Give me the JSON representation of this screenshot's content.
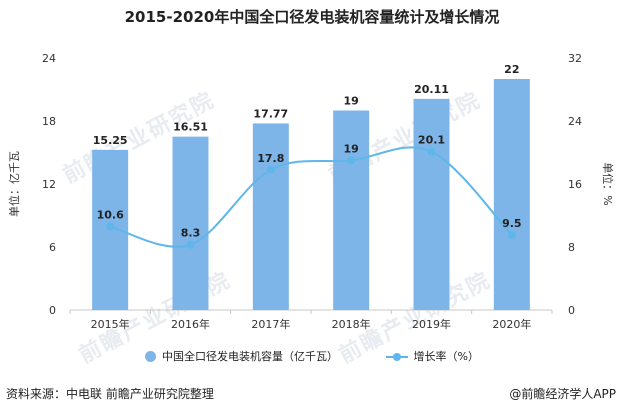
{
  "title": "2015-2020年中国全口径发电装机容量统计及增长情况",
  "source": "资料来源：中电联 前瞻产业研究院整理",
  "brand": "@前瞻经济学人APP",
  "watermark": "前瞻产业研究院",
  "colors": {
    "bar": "#7eb5e8",
    "line": "#5fb6ea",
    "axis": "#c8c8c8",
    "text": "#333333"
  },
  "chart_data": {
    "type": "bar+line",
    "categories": [
      "2015年",
      "2016年",
      "2017年",
      "2018年",
      "2019年",
      "2020年"
    ],
    "series": [
      {
        "name": "中国全口径发电装机容量（亿千瓦）",
        "type": "bar",
        "axis": "left",
        "values": [
          15.25,
          16.51,
          17.77,
          19,
          20.11,
          22
        ],
        "labels": [
          "15.25",
          "16.51",
          "17.77",
          "19",
          "20.11",
          "22"
        ]
      },
      {
        "name": "增长率（%）",
        "type": "line",
        "axis": "right",
        "values": [
          10.6,
          8.3,
          17.8,
          19,
          20.1,
          9.5
        ],
        "labels": [
          "10.6",
          "8.3",
          "17.8",
          "19",
          "20.1",
          "9.5"
        ]
      }
    ],
    "y_left": {
      "label": "单位：亿千瓦",
      "range": [
        0,
        24
      ],
      "ticks": [
        "0",
        "6",
        "12",
        "18",
        "24"
      ]
    },
    "y_right": {
      "label": "单位：%",
      "range": [
        0,
        32
      ],
      "ticks": [
        "0",
        "8",
        "16",
        "24",
        "32"
      ]
    },
    "grid": false,
    "legend_position": "bottom"
  }
}
